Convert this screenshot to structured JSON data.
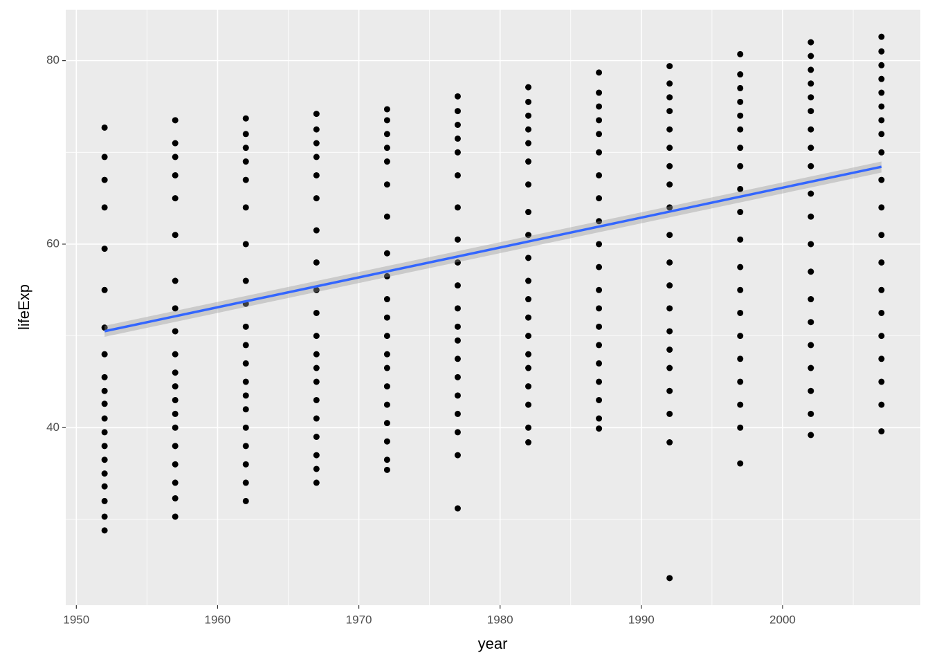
{
  "chart_data": {
    "type": "scatter",
    "x_label": "year",
    "y_label": "lifeExp",
    "xlim": [
      1949.25,
      2009.75
    ],
    "xticks": [
      1950,
      1960,
      1970,
      1980,
      1990,
      2000
    ],
    "xminor": [
      1955,
      1965,
      1975,
      1985,
      1995,
      2005
    ],
    "ylim": [
      20.65,
      85.55
    ],
    "yticks": [
      40,
      60,
      80
    ],
    "yminor": [
      30,
      50,
      70
    ],
    "grid": true,
    "point_color": "#000000",
    "series": [
      {
        "x": 1952,
        "values": [
          28.8,
          30.3,
          32.0,
          33.6,
          35.0,
          36.5,
          38.0,
          39.5,
          41.0,
          42.6,
          44.0,
          45.5,
          48.0,
          50.9,
          55.0,
          59.5,
          64.0,
          67.0,
          69.5,
          72.7
        ]
      },
      {
        "x": 1957,
        "values": [
          30.3,
          32.3,
          34.0,
          36.0,
          38.0,
          40.0,
          41.5,
          43.0,
          44.5,
          46.0,
          48.0,
          50.5,
          53.0,
          56.0,
          61.0,
          65.0,
          67.5,
          69.5,
          71.0,
          73.5
        ]
      },
      {
        "x": 1962,
        "values": [
          32.0,
          34.0,
          36.0,
          38.0,
          40.0,
          42.0,
          43.5,
          45.0,
          47.0,
          49.0,
          51.0,
          53.5,
          56.0,
          60.0,
          64.0,
          67.0,
          69.0,
          70.5,
          72.0,
          73.7
        ]
      },
      {
        "x": 1967,
        "values": [
          34.0,
          35.5,
          37.0,
          39.0,
          41.0,
          43.0,
          45.0,
          46.5,
          48.0,
          50.0,
          52.5,
          55.0,
          58.0,
          61.5,
          65.0,
          67.5,
          69.5,
          71.0,
          72.5,
          74.2
        ]
      },
      {
        "x": 1972,
        "values": [
          35.4,
          36.5,
          38.5,
          40.5,
          42.5,
          44.5,
          46.5,
          48.0,
          50.0,
          52.0,
          54.0,
          56.5,
          59.0,
          63.0,
          66.5,
          69.0,
          70.5,
          72.0,
          73.5,
          74.7
        ]
      },
      {
        "x": 1977,
        "values": [
          31.2,
          37.0,
          39.5,
          41.5,
          43.5,
          45.5,
          47.5,
          49.5,
          51.0,
          53.0,
          55.5,
          58.0,
          60.5,
          64.0,
          67.5,
          70.0,
          71.5,
          73.0,
          74.5,
          76.1
        ]
      },
      {
        "x": 1982,
        "values": [
          38.4,
          40.0,
          42.5,
          44.5,
          46.5,
          48.0,
          50.0,
          52.0,
          54.0,
          56.0,
          58.5,
          61.0,
          63.5,
          66.5,
          69.0,
          71.0,
          72.5,
          74.0,
          75.5,
          77.1
        ]
      },
      {
        "x": 1987,
        "values": [
          39.9,
          41.0,
          43.0,
          45.0,
          47.0,
          49.0,
          51.0,
          53.0,
          55.0,
          57.5,
          60.0,
          62.5,
          65.0,
          67.5,
          70.0,
          72.0,
          73.5,
          75.0,
          76.5,
          78.7
        ]
      },
      {
        "x": 1992,
        "values": [
          23.6,
          38.4,
          41.5,
          44.0,
          46.5,
          48.5,
          50.5,
          53.0,
          55.5,
          58.0,
          61.0,
          64.0,
          66.5,
          68.5,
          70.5,
          72.5,
          74.5,
          76.0,
          77.5,
          79.4
        ]
      },
      {
        "x": 1997,
        "values": [
          36.1,
          40.0,
          42.5,
          45.0,
          47.5,
          50.0,
          52.5,
          55.0,
          57.5,
          60.5,
          63.5,
          66.0,
          68.5,
          70.5,
          72.5,
          74.0,
          75.5,
          77.0,
          78.5,
          80.7
        ]
      },
      {
        "x": 2002,
        "values": [
          39.2,
          41.5,
          44.0,
          46.5,
          49.0,
          51.5,
          54.0,
          57.0,
          60.0,
          63.0,
          65.5,
          68.5,
          70.5,
          72.5,
          74.5,
          76.0,
          77.5,
          79.0,
          80.5,
          82.0
        ]
      },
      {
        "x": 2007,
        "values": [
          39.6,
          42.5,
          45.0,
          47.5,
          50.0,
          52.5,
          55.0,
          58.0,
          61.0,
          64.0,
          67.0,
          70.0,
          72.0,
          73.5,
          75.0,
          76.5,
          78.0,
          79.5,
          81.0,
          82.6
        ]
      }
    ],
    "fit": {
      "x": [
        1952,
        2007
      ],
      "values": [
        50.51,
        68.43
      ],
      "lower": [
        49.9,
        67.8
      ],
      "upper": [
        51.1,
        69.0
      ],
      "color": "#3366ff",
      "band_color": "#999999"
    }
  }
}
